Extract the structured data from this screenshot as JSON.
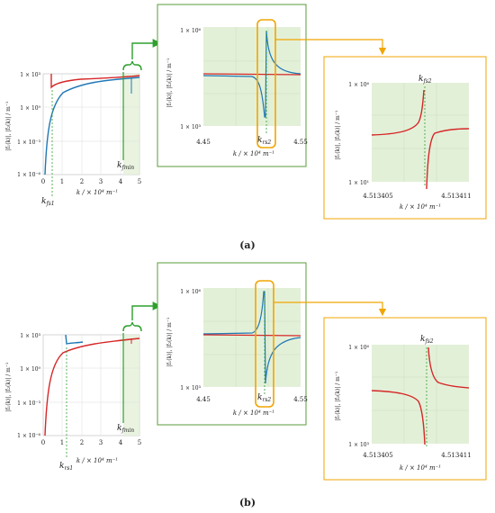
{
  "panels": [
    {
      "caption": "(a)",
      "overview": {
        "ylabel": "|f₁(k)|, |f₂(k)| / m⁻¹",
        "yticks": [
          "1 × 10⁻⁶",
          "1 × 10⁻³",
          "1 × 10⁰",
          "1 × 10³"
        ],
        "xticks": [
          "0",
          "1",
          "2",
          "3",
          "4",
          "5"
        ],
        "xlabel": "k / × 10⁴ m⁻¹",
        "marker_left": "k",
        "marker_left_sub": "fs1",
        "marker_right": "k",
        "marker_right_sub": "fmin"
      },
      "zoom1": {
        "ylabel": "|f₁(k)|, |f₂(k)| / m⁻¹",
        "ytick_top": "1 × 10⁶",
        "ytick_bottom": "1 × 10³",
        "xtick_left": "4.45",
        "xtick_right": "4.55",
        "xlabel": "k / × 10⁴ m⁻¹",
        "marker": "k",
        "marker_sub": "rs2"
      },
      "zoom2": {
        "ylabel": "|f₁(k)|, |f₂(k)| / m⁻¹",
        "ytick_top": "1 × 10⁶",
        "ytick_bottom": "1 × 10¹",
        "xtick_left": "4.513405",
        "xtick_right": "4.513411",
        "xlabel": "k / × 10⁴ m⁻¹",
        "marker": "k",
        "marker_sub": "fs2"
      }
    },
    {
      "caption": "(b)",
      "overview": {
        "ylabel": "|f₁(k)|, |f₂(k)| / m⁻¹",
        "yticks": [
          "1 × 10⁻⁶",
          "1 × 10⁻³",
          "1 × 10⁰",
          "1 × 10³"
        ],
        "xticks": [
          "0",
          "1",
          "2",
          "3",
          "4",
          "5"
        ],
        "xlabel": "k / × 10⁴ m⁻¹",
        "marker_left": "k",
        "marker_left_sub": "rs1",
        "marker_right": "k",
        "marker_right_sub": "fmin"
      },
      "zoom1": {
        "ylabel": "|f₁(k)|, |f₂(k)| / m⁻¹",
        "ytick_top": "1 × 10⁶",
        "ytick_bottom": "1 × 10³",
        "xtick_left": "4.45",
        "xtick_right": "4.55",
        "xlabel": "k / × 10⁴ m⁻¹",
        "marker": "k",
        "marker_sub": "rs2"
      },
      "zoom2": {
        "ylabel": "|f₁(k)|, |f₂(k)| / m⁻¹",
        "ytick_top": "1 × 10⁶",
        "ytick_bottom": "1 × 10³",
        "xtick_left": "4.513405",
        "xtick_right": "4.513411",
        "xlabel": "k / × 10⁴ m⁻¹",
        "marker": "k",
        "marker_sub": "fs2"
      }
    }
  ],
  "colors": {
    "f1_curve": "#d62728",
    "f2_curve": "#1f77b4",
    "zoom_frame_green": "#5a9e3a",
    "zoom_frame_orange": "#f0a500",
    "plot_fill": "#e3f0d8",
    "marker_dash": "#2ca02c"
  }
}
